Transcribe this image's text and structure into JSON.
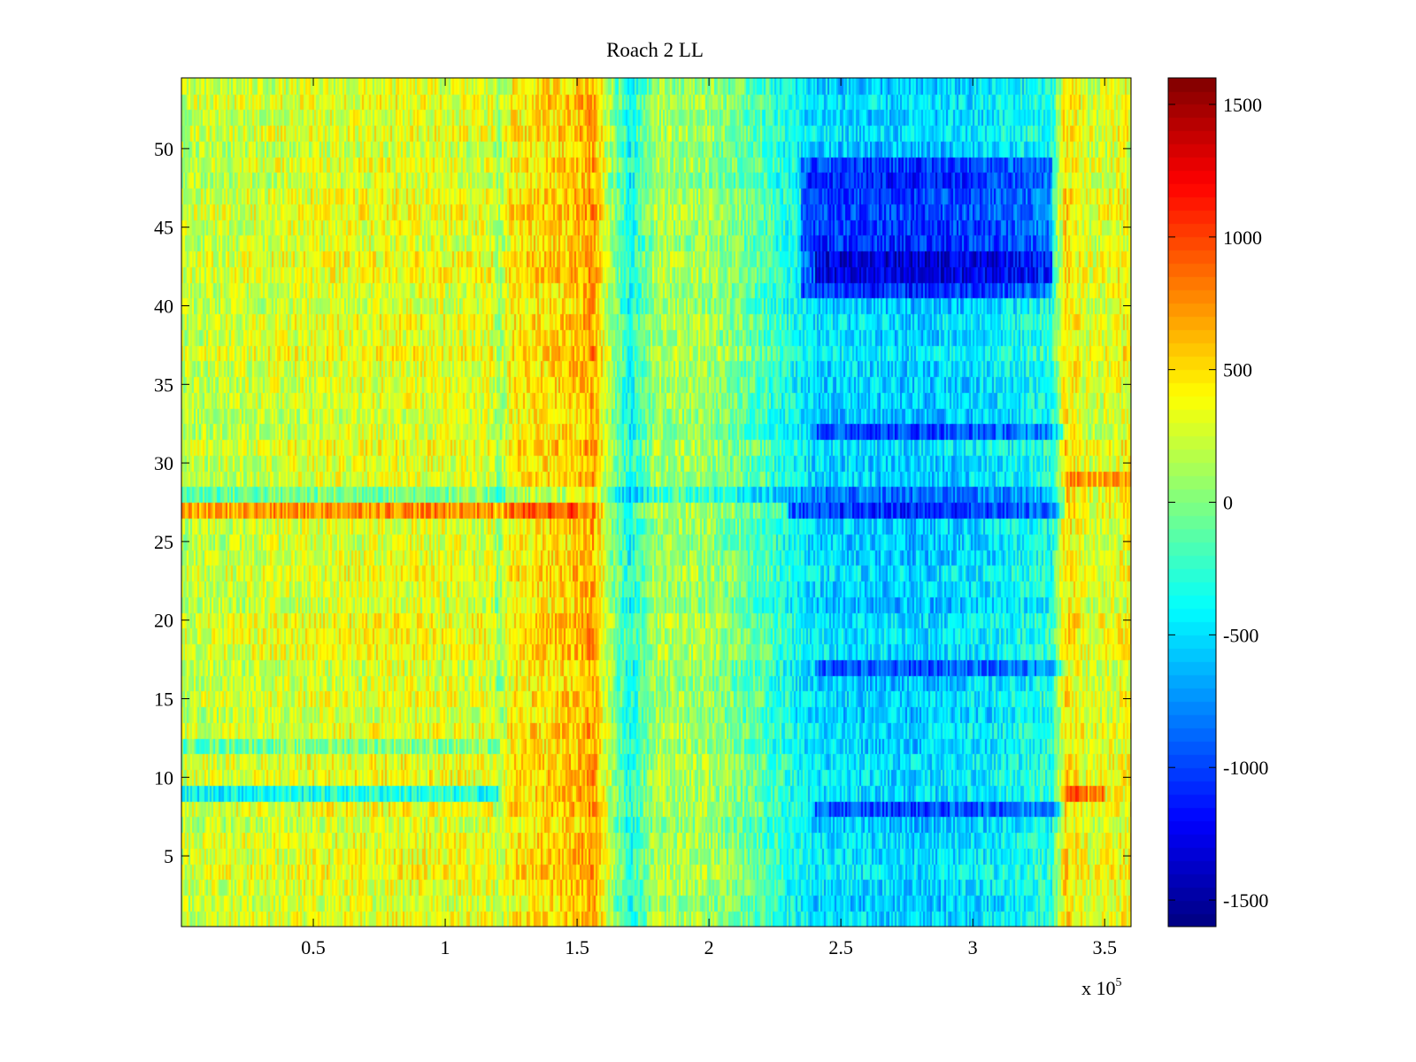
{
  "chart_data": {
    "type": "heatmap",
    "title": "Roach 2 LL",
    "xlabel": "",
    "ylabel": "",
    "x_exponent_label": "x 10",
    "x_exponent_power": "5",
    "x_scale": 100000,
    "xlim": [
      0,
      3.6
    ],
    "ylim": [
      0.5,
      54.5
    ],
    "rows": 54,
    "x_ticks": [
      0.5,
      1,
      1.5,
      2,
      2.5,
      3,
      3.5
    ],
    "x_tick_labels": [
      "0.5",
      "1",
      "1.5",
      "2",
      "2.5",
      "3",
      "3.5"
    ],
    "y_ticks": [
      5,
      10,
      15,
      20,
      25,
      30,
      35,
      40,
      45,
      50
    ],
    "y_tick_labels": [
      "5",
      "10",
      "15",
      "20",
      "25",
      "30",
      "35",
      "40",
      "45",
      "50"
    ],
    "colorbar": {
      "colormap": "jet",
      "clim": [
        -1600,
        1600
      ],
      "ticks": [
        -1500,
        -1000,
        -500,
        0,
        500,
        1000,
        1500
      ],
      "tick_labels": [
        "-1500",
        "-1000",
        "-500",
        "0",
        "500",
        "1000",
        "1500"
      ]
    },
    "column_profile": [
      {
        "x": 0.0,
        "value": 200
      },
      {
        "x": 0.4,
        "value": 280
      },
      {
        "x": 0.8,
        "value": 330
      },
      {
        "x": 1.18,
        "value": 300
      },
      {
        "x": 1.2,
        "value": 60
      },
      {
        "x": 1.25,
        "value": 420
      },
      {
        "x": 1.5,
        "value": 560
      },
      {
        "x": 1.56,
        "value": 700
      },
      {
        "x": 1.62,
        "value": 150
      },
      {
        "x": 1.7,
        "value": -350
      },
      {
        "x": 1.8,
        "value": 120
      },
      {
        "x": 2.0,
        "value": 100
      },
      {
        "x": 2.2,
        "value": -150
      },
      {
        "x": 2.4,
        "value": -500
      },
      {
        "x": 2.8,
        "value": -560
      },
      {
        "x": 3.1,
        "value": -450
      },
      {
        "x": 3.3,
        "value": -300
      },
      {
        "x": 3.35,
        "value": 480
      },
      {
        "x": 3.45,
        "value": 250
      },
      {
        "x": 3.6,
        "value": 380
      }
    ],
    "features": [
      {
        "row": 27,
        "x_from": 0.0,
        "x_to": 1.5,
        "offset": 380
      },
      {
        "row": 27,
        "x_from": 2.3,
        "x_to": 3.35,
        "offset": -600
      },
      {
        "row": 28,
        "x_from": 0.0,
        "x_to": 3.35,
        "offset": -380
      },
      {
        "row": 9,
        "x_from": 0.0,
        "x_to": 1.2,
        "offset": -650
      },
      {
        "row": 8,
        "x_from": 2.4,
        "x_to": 3.35,
        "offset": -500
      },
      {
        "row": 9,
        "x_from": 3.35,
        "x_to": 3.5,
        "offset": 450
      },
      {
        "row": 12,
        "x_from": 0.0,
        "x_to": 1.2,
        "offset": -280
      },
      {
        "row": 17,
        "x_from": 2.4,
        "x_to": 3.35,
        "offset": -350
      },
      {
        "row": 32,
        "x_from": 2.4,
        "x_to": 3.35,
        "offset": -380
      },
      {
        "row": 29,
        "x_from": 3.35,
        "x_to": 3.6,
        "offset": 350
      },
      {
        "rows": [
          41,
          49
        ],
        "x_from": 2.35,
        "x_to": 3.3,
        "offset": -500
      },
      {
        "rows": [
          42,
          43
        ],
        "x_from": 2.4,
        "x_to": 3.3,
        "offset": -350
      }
    ]
  }
}
